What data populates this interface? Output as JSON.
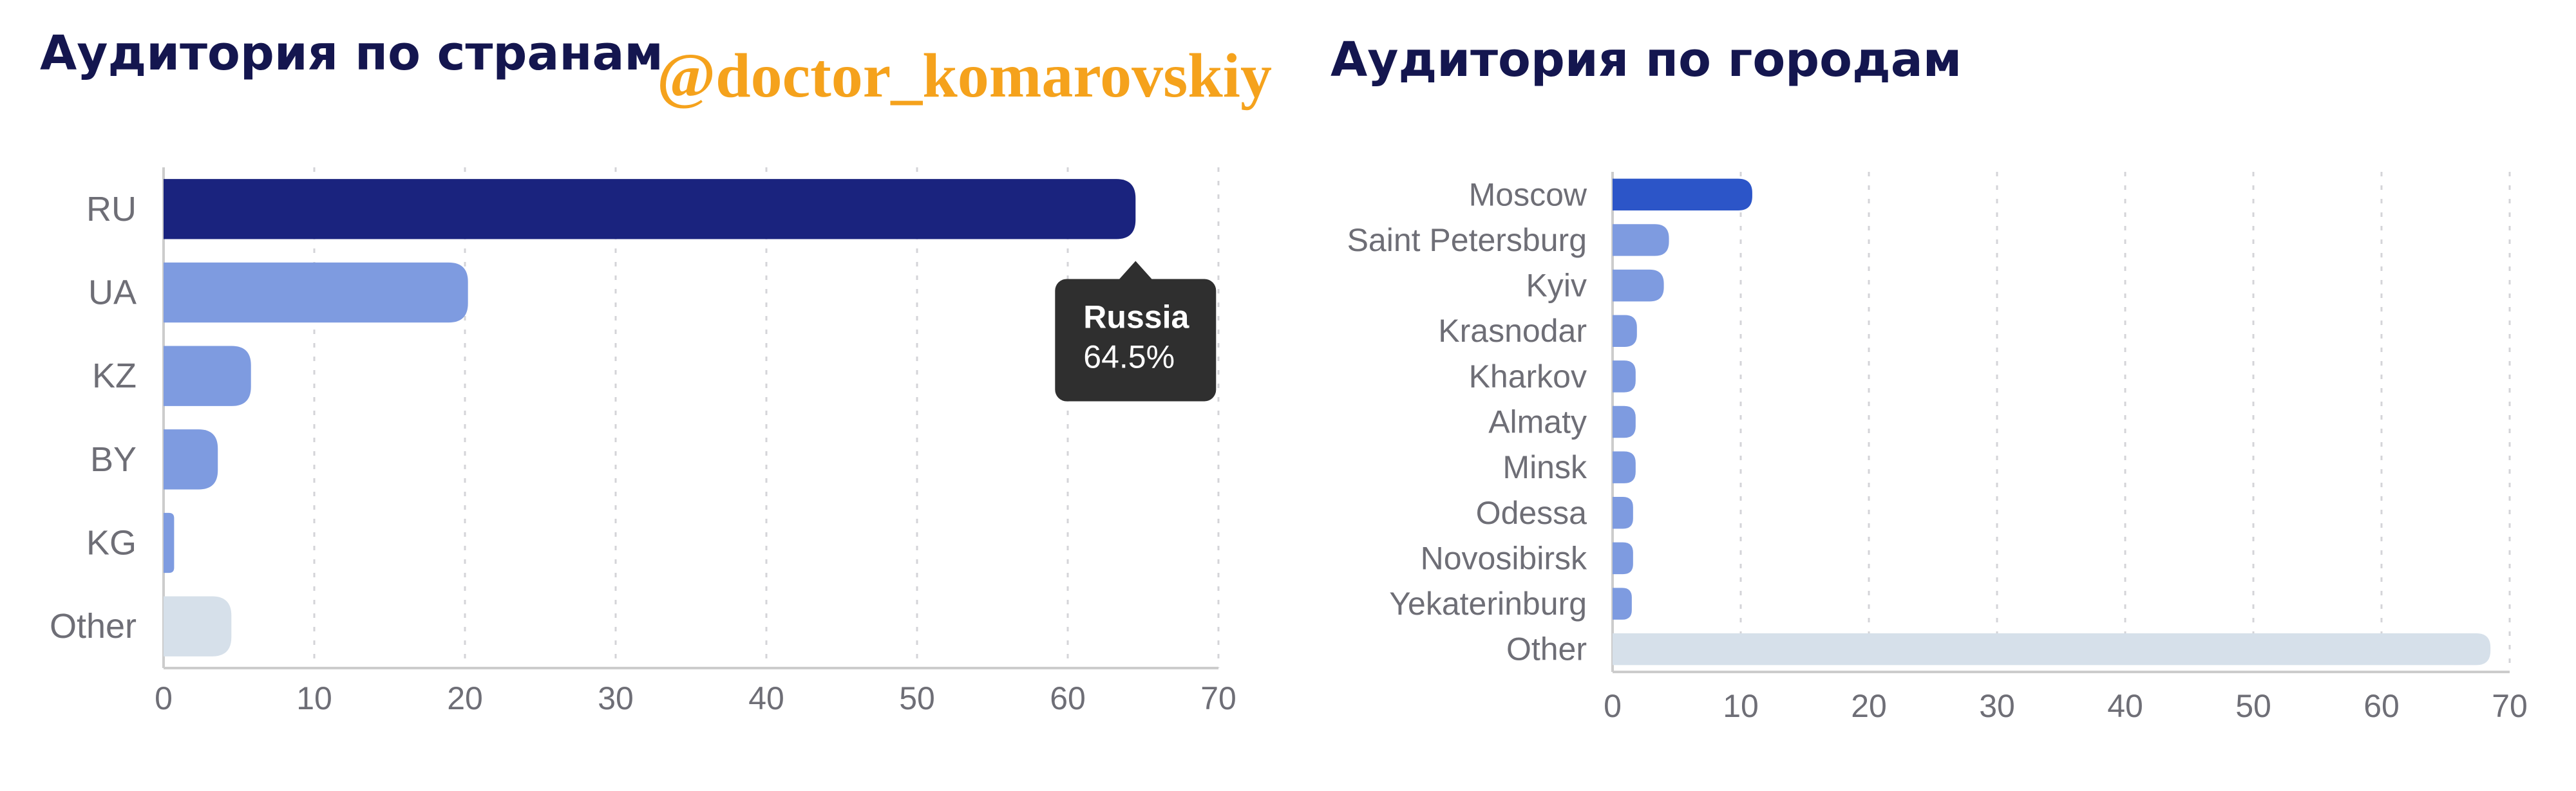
{
  "panels": {
    "countries_title": "Аудитория по странам",
    "cities_title": "Аудитория по городам"
  },
  "watermark": "@doctor_komarovskiy",
  "colors": {
    "title": "#14164f",
    "highlight_country": "#1a237e",
    "highlight_city": "#2c55c8",
    "bar": "#7e9be0",
    "other": "#d6e0ea",
    "grid": "#d4d4d8",
    "axis": "#cccccc",
    "label": "#6e6e76",
    "tooltip_bg": "#2f2f2f",
    "watermark": "#f5a21c"
  },
  "chart_data": [
    {
      "type": "bar",
      "orientation": "horizontal",
      "title": "Аудитория по странам",
      "categories": [
        "RU",
        "UA",
        "KZ",
        "BY",
        "KG",
        "Other"
      ],
      "values": [
        64.5,
        20.2,
        5.8,
        3.6,
        0.7,
        4.5
      ],
      "highlight_index": 0,
      "other_index": 5,
      "xlim": [
        0,
        70
      ],
      "xticks": [
        0,
        10,
        20,
        30,
        40,
        50,
        60,
        70
      ],
      "grid": "vertical dashed",
      "tooltip": {
        "category_index": 0,
        "title": "Russia",
        "value": "64.5%"
      }
    },
    {
      "type": "bar",
      "orientation": "horizontal",
      "title": "Аудитория по городам",
      "categories": [
        "Moscow",
        "Saint Petersburg",
        "Kyiv",
        "Krasnodar",
        "Kharkov",
        "Almaty",
        "Minsk",
        "Odessa",
        "Novosibirsk",
        "Yekaterinburg",
        "Other"
      ],
      "values": [
        10.9,
        4.4,
        4.0,
        1.9,
        1.8,
        1.8,
        1.8,
        1.6,
        1.6,
        1.5,
        68.5
      ],
      "highlight_index": 0,
      "other_index": 10,
      "xlim": [
        0,
        70
      ],
      "xticks": [
        0,
        10,
        20,
        30,
        40,
        50,
        60,
        70
      ],
      "grid": "vertical dashed"
    }
  ]
}
